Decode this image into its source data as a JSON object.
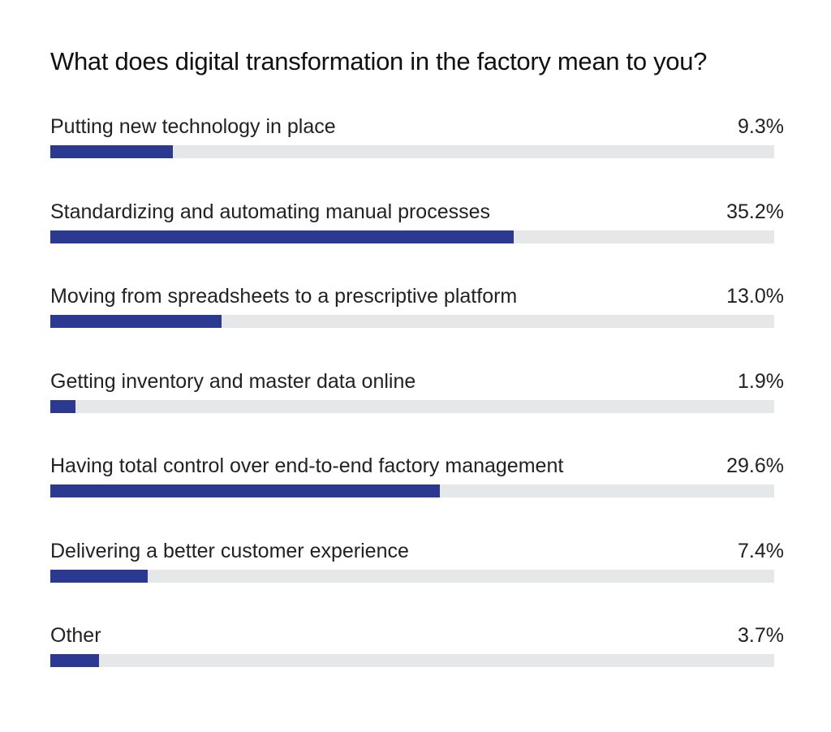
{
  "chart_data": {
    "type": "bar",
    "orientation": "horizontal",
    "title": "What does digital transformation in the factory mean to you?",
    "categories": [
      "Putting new technology in place",
      "Standardizing and automating manual processes",
      "Moving from spreadsheets to a prescriptive platform",
      "Getting inventory and master data online",
      "Having total control over end-to-end factory management",
      "Delivering a better customer experience",
      "Other"
    ],
    "values": [
      9.3,
      35.2,
      13.0,
      1.9,
      29.6,
      7.4,
      3.7
    ],
    "value_labels": [
      "9.3%",
      "35.2%",
      "13.0%",
      "1.9%",
      "29.6%",
      "7.4%",
      "3.7%"
    ],
    "xlim": [
      0,
      55
    ],
    "grid": false,
    "legend": "none",
    "colors": {
      "bar": "#2b3990",
      "track": "#e6e7e8"
    }
  }
}
